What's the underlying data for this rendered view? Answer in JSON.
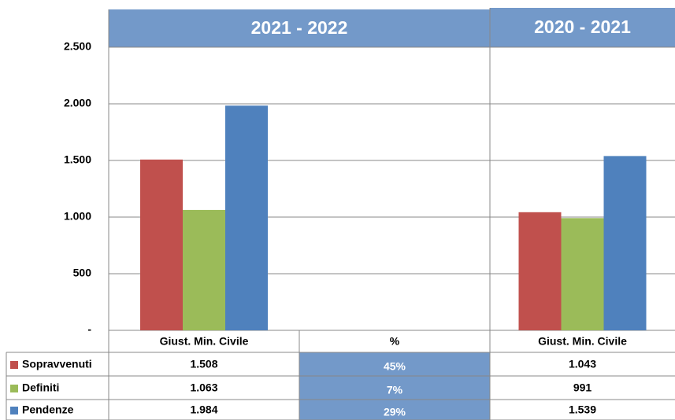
{
  "chart_data": {
    "type": "bar",
    "groups": [
      "2021 - 2022",
      "2020 - 2021"
    ],
    "categories": [
      "Giust. Min. Civile",
      "%",
      "Giust. Min. Civile"
    ],
    "series": [
      {
        "name": "Sopravvenuti",
        "color": "#c0504d",
        "values": [
          1508,
          null,
          1043
        ],
        "value_labels": [
          "1.508",
          null,
          "1.043"
        ],
        "change": {
          "value": 45,
          "label": "45%"
        }
      },
      {
        "name": "Definiti",
        "color": "#9bbb59",
        "values": [
          1063,
          null,
          991
        ],
        "value_labels": [
          "1.063",
          null,
          "991"
        ],
        "change": {
          "value": 7,
          "label": "7%"
        }
      },
      {
        "name": "Pendenze",
        "color": "#4f81bd",
        "values": [
          1984,
          null,
          1539
        ],
        "value_labels": [
          "1.984",
          null,
          "1.539"
        ],
        "change": {
          "value": 29,
          "label": "29%"
        }
      }
    ],
    "ylim": [
      0,
      2500
    ],
    "yticks": [
      {
        "value": 0,
        "label": "-"
      },
      500,
      {
        "value": 1000,
        "label": "1.000"
      },
      {
        "value": 1500,
        "label": "1.500"
      },
      {
        "value": 2000,
        "label": "2.000"
      },
      {
        "value": 2500,
        "label": "2.500"
      }
    ],
    "grid": true
  }
}
